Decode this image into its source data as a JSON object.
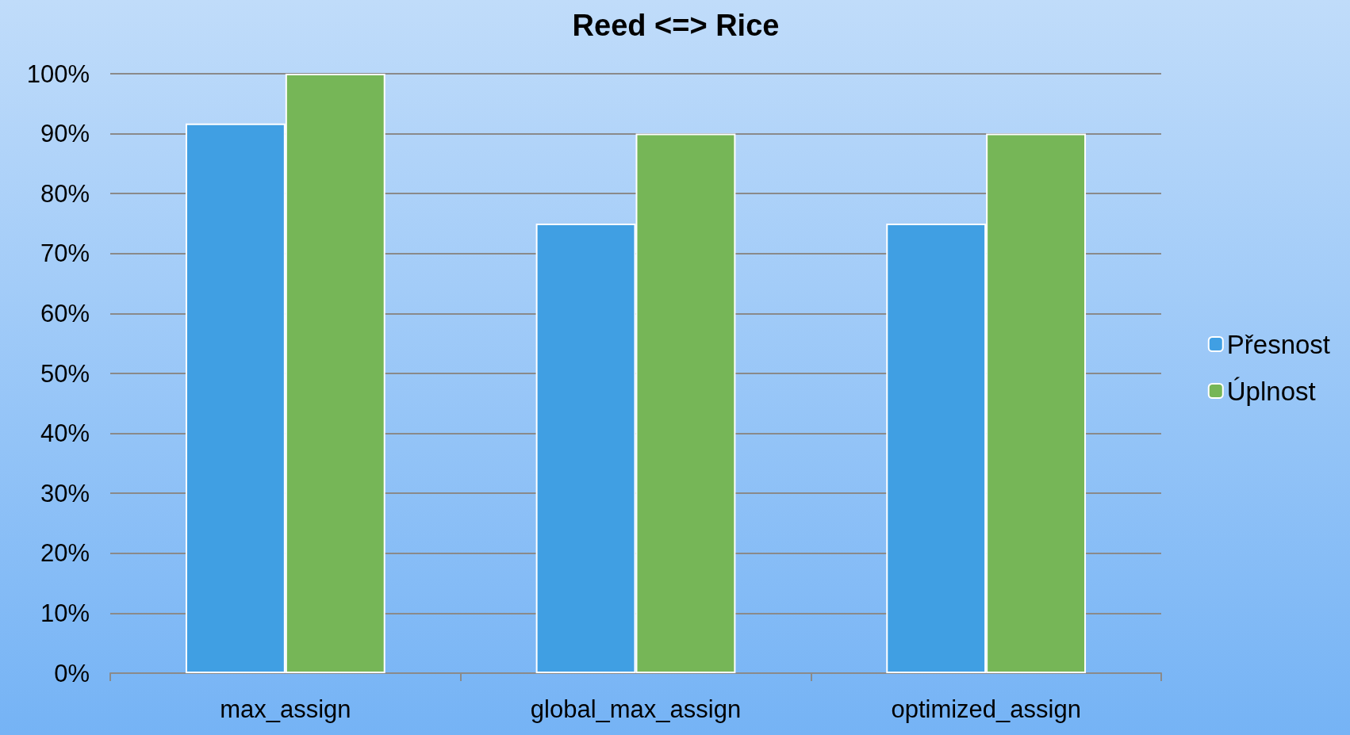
{
  "chart_data": {
    "type": "bar",
    "title": "Reed <=> Rice",
    "categories": [
      "max_assign",
      "global_max_assign",
      "optimized_assign"
    ],
    "series": [
      {
        "name": "Přesnost",
        "color": "#409fe3",
        "values": [
          91.7,
          75,
          75
        ]
      },
      {
        "name": "Úplnost",
        "color": "#76b657",
        "values": [
          100,
          90,
          90
        ]
      }
    ],
    "ylim": [
      0,
      100
    ],
    "yticks": [
      {
        "value": 0,
        "label": "0%"
      },
      {
        "value": 10,
        "label": "10%"
      },
      {
        "value": 20,
        "label": "20%"
      },
      {
        "value": 30,
        "label": "30%"
      },
      {
        "value": 40,
        "label": "40%"
      },
      {
        "value": 50,
        "label": "50%"
      },
      {
        "value": 60,
        "label": "60%"
      },
      {
        "value": 70,
        "label": "70%"
      },
      {
        "value": 80,
        "label": "80%"
      },
      {
        "value": 90,
        "label": "90%"
      },
      {
        "value": 100,
        "label": "100%"
      }
    ],
    "grid": "y",
    "legend": "right"
  }
}
